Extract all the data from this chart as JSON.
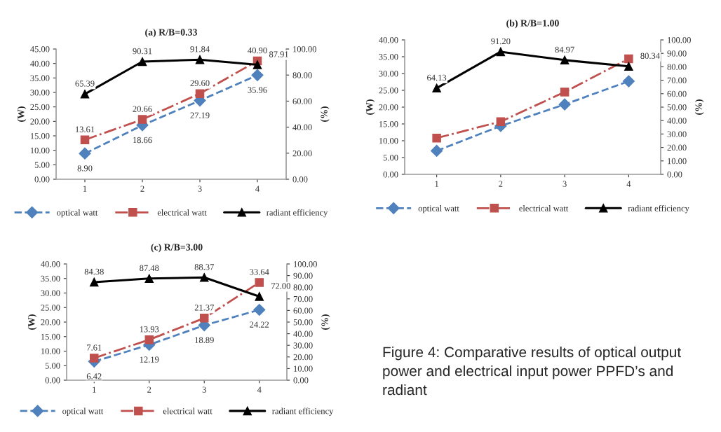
{
  "chart_data": [
    {
      "type": "line",
      "title": "(a) R/B=0.33",
      "categories": [
        "1",
        "2",
        "3",
        "4"
      ],
      "ylabel": "(W)",
      "y2label": "(%)",
      "legend": "bottom",
      "grid": false,
      "ylim": [
        0,
        45
      ],
      "yticks": [
        {
          "value": 0,
          "label": "0.00"
        },
        {
          "value": 5,
          "label": "5.00"
        },
        {
          "value": 10,
          "label": "10.00"
        },
        {
          "value": 15,
          "label": "15.00"
        },
        {
          "value": 20,
          "label": "20.00"
        },
        {
          "value": 25,
          "label": "25.00"
        },
        {
          "value": 30,
          "label": "30.00"
        },
        {
          "value": 35,
          "label": "35.00"
        },
        {
          "value": 40,
          "label": "40.00"
        },
        {
          "value": 45,
          "label": "45.00"
        }
      ],
      "y2lim": [
        0,
        100
      ],
      "y2ticks": [
        {
          "value": 0,
          "label": "0.00"
        },
        {
          "value": 20,
          "label": "20.00"
        },
        {
          "value": 40,
          "label": "40.00"
        },
        {
          "value": 60,
          "label": "60.00"
        },
        {
          "value": 80,
          "label": "80.00"
        },
        {
          "value": 100,
          "label": "100.00"
        }
      ],
      "series": [
        {
          "name": "optical watt",
          "color": "#4f81bd",
          "marker": "diamond",
          "line_style": "dashed",
          "values": [
            8.9,
            18.66,
            27.19,
            35.96
          ],
          "value_labels": [
            "8.90",
            "18.66",
            "27.19",
            "35.96"
          ]
        },
        {
          "name": "electrical watt",
          "color": "#c0504d",
          "marker": "square",
          "line_style": "dashdot",
          "values": [
            13.61,
            20.66,
            29.6,
            40.9
          ],
          "value_labels": [
            "13.61",
            "20.66",
            "29.60",
            "40.90"
          ]
        },
        {
          "name": "radiant efficiency",
          "color": "#000000",
          "marker": "triangle",
          "line_style": "solid",
          "axis": "y2",
          "values": [
            65.39,
            90.31,
            91.84,
            87.91
          ],
          "value_labels": [
            "65.39",
            "90.31",
            "91.84",
            "87.91"
          ]
        }
      ]
    },
    {
      "type": "line",
      "title": "(b) R/B=1.00",
      "categories": [
        "1",
        "2",
        "3",
        "4"
      ],
      "ylabel": "(W)",
      "y2label": "(%)",
      "legend": "bottom",
      "grid": false,
      "ylim": [
        0,
        40
      ],
      "yticks": [
        {
          "value": 0,
          "label": "0.00"
        },
        {
          "value": 5,
          "label": "5.00"
        },
        {
          "value": 10,
          "label": "10.00"
        },
        {
          "value": 15,
          "label": "15.00"
        },
        {
          "value": 20,
          "label": "20.00"
        },
        {
          "value": 25,
          "label": "25.00"
        },
        {
          "value": 30,
          "label": "30.00"
        },
        {
          "value": 35,
          "label": "35.00"
        },
        {
          "value": 40,
          "label": "40.00"
        }
      ],
      "y2lim": [
        0,
        100
      ],
      "y2ticks": [
        {
          "value": 0,
          "label": "0.00"
        },
        {
          "value": 10,
          "label": "10.00"
        },
        {
          "value": 20,
          "label": "20.00"
        },
        {
          "value": 30,
          "label": "30.00"
        },
        {
          "value": 40,
          "label": "40.00"
        },
        {
          "value": 50,
          "label": "50.00"
        },
        {
          "value": 60,
          "label": "60.00"
        },
        {
          "value": 70,
          "label": "70.00"
        },
        {
          "value": 80,
          "label": "80.00"
        },
        {
          "value": 90,
          "label": "90.00"
        },
        {
          "value": 100,
          "label": "100.00"
        }
      ],
      "series": [
        {
          "name": "optical watt",
          "color": "#4f81bd",
          "marker": "diamond",
          "line_style": "dashed",
          "values": [
            7.0,
            14.4,
            20.8,
            27.7
          ]
        },
        {
          "name": "electrical watt",
          "color": "#c0504d",
          "marker": "square",
          "line_style": "dashdot",
          "values": [
            10.8,
            15.7,
            24.5,
            34.4
          ]
        },
        {
          "name": "radiant efficiency",
          "color": "#000000",
          "marker": "triangle",
          "line_style": "solid",
          "axis": "y2",
          "values": [
            64.13,
            91.2,
            84.97,
            80.34
          ],
          "value_labels": [
            "64.13",
            "91.20",
            "84.97",
            "80.34"
          ]
        }
      ]
    },
    {
      "type": "line",
      "title": "(c) R/B=3.00",
      "categories": [
        "1",
        "2",
        "3",
        "4"
      ],
      "ylabel": "(W)",
      "y2label": "(%)",
      "legend": "bottom",
      "grid": false,
      "ylim": [
        0,
        40
      ],
      "yticks": [
        {
          "value": 0,
          "label": "0.00"
        },
        {
          "value": 5,
          "label": "5.00"
        },
        {
          "value": 10,
          "label": "10.00"
        },
        {
          "value": 15,
          "label": "15.00"
        },
        {
          "value": 20,
          "label": "20.00"
        },
        {
          "value": 25,
          "label": "25.00"
        },
        {
          "value": 30,
          "label": "30.00"
        },
        {
          "value": 35,
          "label": "35.00"
        },
        {
          "value": 40,
          "label": "40.00"
        }
      ],
      "y2lim": [
        0,
        100
      ],
      "y2ticks": [
        {
          "value": 0,
          "label": "0.00"
        },
        {
          "value": 10,
          "label": "10.00"
        },
        {
          "value": 20,
          "label": "20.00"
        },
        {
          "value": 30,
          "label": "30.00"
        },
        {
          "value": 40,
          "label": "40.00"
        },
        {
          "value": 50,
          "label": "50.00"
        },
        {
          "value": 60,
          "label": "60.00"
        },
        {
          "value": 70,
          "label": "70.00"
        },
        {
          "value": 80,
          "label": "80.00"
        },
        {
          "value": 90,
          "label": "90.00"
        },
        {
          "value": 100,
          "label": "100.00"
        }
      ],
      "series": [
        {
          "name": "optical watt",
          "color": "#4f81bd",
          "marker": "diamond",
          "line_style": "dashed",
          "values": [
            6.42,
            12.19,
            18.89,
            24.22
          ],
          "value_labels": [
            "6.42",
            "12.19",
            "18.89",
            "24.22"
          ]
        },
        {
          "name": "electrical watt",
          "color": "#c0504d",
          "marker": "square",
          "line_style": "dashdot",
          "values": [
            7.61,
            13.93,
            21.37,
            33.64
          ],
          "value_labels": [
            "7.61",
            "13.93",
            "21.37",
            "33.64"
          ]
        },
        {
          "name": "radiant efficiency",
          "color": "#000000",
          "marker": "triangle",
          "line_style": "solid",
          "axis": "y2",
          "values": [
            84.38,
            87.48,
            88.37,
            72.0
          ],
          "value_labels": [
            "84.38",
            "87.48",
            "88.37",
            "72.00"
          ]
        }
      ],
      "annotations": [
        "Figure 4: Comparative results of optical output power and electrical input power PPFD’s and radiant"
      ]
    }
  ]
}
